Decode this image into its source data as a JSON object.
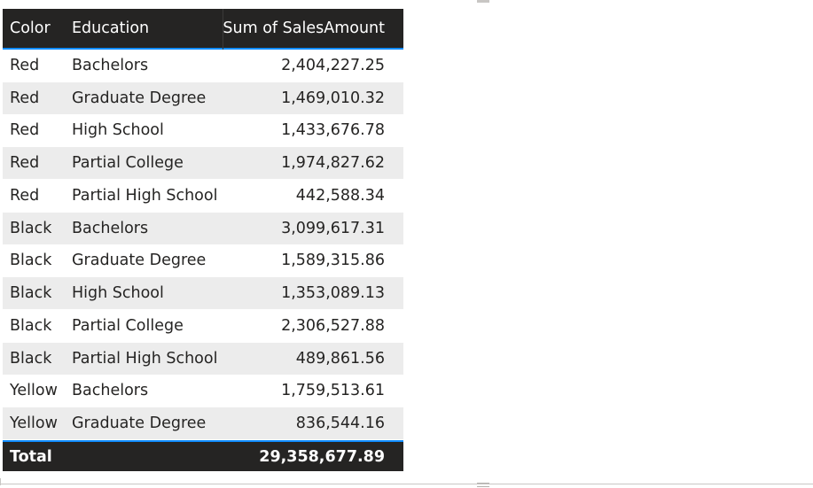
{
  "table": {
    "headers": {
      "color": "Color",
      "education": "Education",
      "sum": "Sum of SalesAmount"
    },
    "rows": [
      {
        "color": "Red",
        "education": "Bachelors",
        "sum": "2,404,227.25"
      },
      {
        "color": "Red",
        "education": "Graduate Degree",
        "sum": "1,469,010.32"
      },
      {
        "color": "Red",
        "education": "High School",
        "sum": "1,433,676.78"
      },
      {
        "color": "Red",
        "education": "Partial College",
        "sum": "1,974,827.62"
      },
      {
        "color": "Red",
        "education": "Partial High School",
        "sum": "442,588.34"
      },
      {
        "color": "Black",
        "education": "Bachelors",
        "sum": "3,099,617.31"
      },
      {
        "color": "Black",
        "education": "Graduate Degree",
        "sum": "1,589,315.86"
      },
      {
        "color": "Black",
        "education": "High School",
        "sum": "1,353,089.13"
      },
      {
        "color": "Black",
        "education": "Partial College",
        "sum": "2,306,527.88"
      },
      {
        "color": "Black",
        "education": "Partial High School",
        "sum": "489,861.56"
      },
      {
        "color": "Yellow",
        "education": "Bachelors",
        "sum": "1,759,513.61"
      },
      {
        "color": "Yellow",
        "education": "Graduate Degree",
        "sum": "836,544.16"
      }
    ],
    "total": {
      "label": "Total",
      "sum": "29,358,677.89"
    }
  },
  "colors": {
    "header_bg": "#252423",
    "accent": "#118dff",
    "alt_row": "#ececec",
    "text": "#252423"
  }
}
